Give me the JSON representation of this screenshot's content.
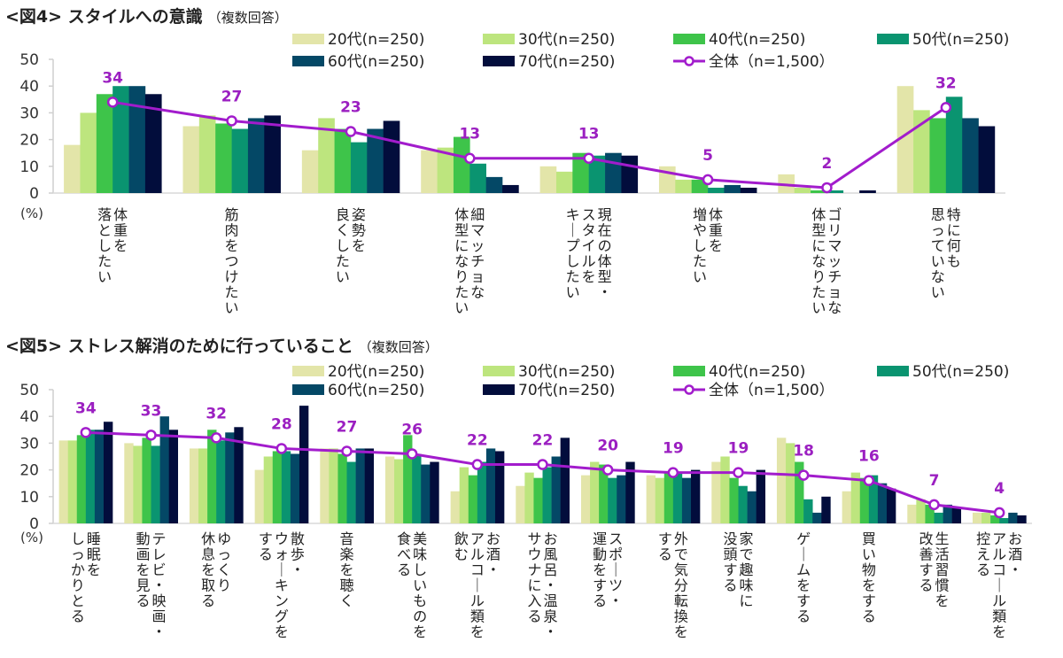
{
  "colors": {
    "20s": "#e3e5a9",
    "30s": "#bde57e",
    "40s": "#3ec44a",
    "50s": "#0a9470",
    "60s": "#044866",
    "70s": "#020d3c",
    "total": "#a21ccc"
  },
  "legend": [
    {
      "key": "20s",
      "label": "20代(n=250)"
    },
    {
      "key": "30s",
      "label": "30代(n=250)"
    },
    {
      "key": "40s",
      "label": "40代(n=250)"
    },
    {
      "key": "50s",
      "label": "50代(n=250)"
    },
    {
      "key": "60s",
      "label": "60代(n=250)"
    },
    {
      "key": "70s",
      "label": "70代(n=250)"
    },
    {
      "key": "total",
      "label": "全体（n=1,500）"
    }
  ],
  "chart_data": [
    {
      "type": "bar",
      "title": "<図4> スタイルへの意識",
      "subtitle": "（複数回答）",
      "ylabel": "(%)",
      "ylim": [
        0,
        50
      ],
      "yticks": [
        0,
        10,
        20,
        30,
        40,
        50
      ],
      "legend_position": "top-right",
      "grid": false,
      "categories": [
        [
          "体重を",
          "落としたい"
        ],
        [
          "筋肉をつけたい"
        ],
        [
          "姿勢を",
          "良くしたい"
        ],
        [
          "細マッチョな",
          "体型になりたい"
        ],
        [
          "現在の体型・",
          "スタイルを",
          "キープしたい"
        ],
        [
          "体重を",
          "増やしたい"
        ],
        [
          "ゴリマッチョな",
          "体型になりたい"
        ],
        [
          "特に何も",
          "思っていない"
        ]
      ],
      "series": [
        {
          "key": "20s",
          "name": "20代(n=250)",
          "values": [
            18,
            25,
            16,
            16,
            10,
            10,
            7,
            40
          ]
        },
        {
          "key": "30s",
          "name": "30代(n=250)",
          "values": [
            30,
            29,
            28,
            17,
            8,
            5,
            2,
            31
          ]
        },
        {
          "key": "40s",
          "name": "40代(n=250)",
          "values": [
            37,
            26,
            24,
            21,
            15,
            5,
            1,
            28
          ]
        },
        {
          "key": "50s",
          "name": "50代(n=250)",
          "values": [
            40,
            24,
            19,
            11,
            14,
            2,
            1,
            36
          ]
        },
        {
          "key": "60s",
          "name": "60代(n=250)",
          "values": [
            40,
            28,
            24,
            6,
            15,
            3,
            0,
            28
          ]
        },
        {
          "key": "70s",
          "name": "70代(n=250)",
          "values": [
            37,
            29,
            27,
            3,
            14,
            2,
            1,
            25
          ]
        }
      ],
      "line": {
        "key": "total",
        "name": "全体（n=1,500）",
        "values": [
          34,
          27,
          23,
          13,
          13,
          5,
          2,
          32
        ]
      }
    },
    {
      "type": "bar",
      "title": "<図5> ストレス解消のために行っていること",
      "subtitle": "（複数回答）",
      "ylabel": "(%)",
      "ylim": [
        0,
        50
      ],
      "yticks": [
        0,
        10,
        20,
        30,
        40,
        50
      ],
      "legend_position": "top-right",
      "grid": false,
      "categories": [
        [
          "睡眠を",
          "しっかりとる"
        ],
        [
          "テレビ・映画・",
          "動画を見る"
        ],
        [
          "ゆっくり",
          "休息を取る"
        ],
        [
          "散歩・",
          "ウォーキングを",
          "する"
        ],
        [
          "音楽を聴く"
        ],
        [
          "美味しいものを",
          "食べる"
        ],
        [
          "お酒・",
          "アルコール類を",
          "飲む"
        ],
        [
          "お風呂・温泉・",
          "サウナに入る"
        ],
        [
          "スポーツ・",
          "運動をする"
        ],
        [
          "外で気分転換を",
          "する"
        ],
        [
          "家で趣味に",
          "没頭する"
        ],
        [
          "ゲームをする"
        ],
        [
          "買い物をする"
        ],
        [
          "生活習慣を",
          "改善する"
        ],
        [
          "お酒・",
          "アルコール類を",
          "控える"
        ]
      ],
      "series": [
        {
          "key": "20s",
          "name": "20代(n=250)",
          "values": [
            31,
            30,
            28,
            20,
            28,
            25,
            12,
            14,
            18,
            18,
            23,
            32,
            12,
            7,
            4
          ]
        },
        {
          "key": "30s",
          "name": "30代(n=250)",
          "values": [
            31,
            29,
            28,
            25,
            28,
            24,
            21,
            19,
            23,
            17,
            25,
            30,
            19,
            9,
            4
          ]
        },
        {
          "key": "40s",
          "name": "40代(n=250)",
          "values": [
            33,
            32,
            35,
            27,
            26,
            33,
            18,
            17,
            22,
            19,
            17,
            23,
            17,
            7,
            3
          ]
        },
        {
          "key": "50s",
          "name": "50代(n=250)",
          "values": [
            35,
            29,
            31,
            27,
            23,
            26,
            23,
            21,
            17,
            19,
            14,
            9,
            18,
            4,
            2
          ]
        },
        {
          "key": "60s",
          "name": "60代(n=250)",
          "values": [
            35,
            40,
            34,
            26,
            28,
            22,
            28,
            25,
            18,
            17,
            12,
            4,
            15,
            7,
            4
          ]
        },
        {
          "key": "70s",
          "name": "70代(n=250)",
          "values": [
            38,
            35,
            36,
            44,
            28,
            23,
            27,
            32,
            23,
            20,
            20,
            10,
            13,
            6,
            3
          ]
        }
      ],
      "line": {
        "key": "total",
        "name": "全体（n=1,500）",
        "values": [
          34,
          33,
          32,
          28,
          27,
          26,
          22,
          22,
          20,
          19,
          19,
          18,
          16,
          7,
          4
        ]
      }
    }
  ]
}
